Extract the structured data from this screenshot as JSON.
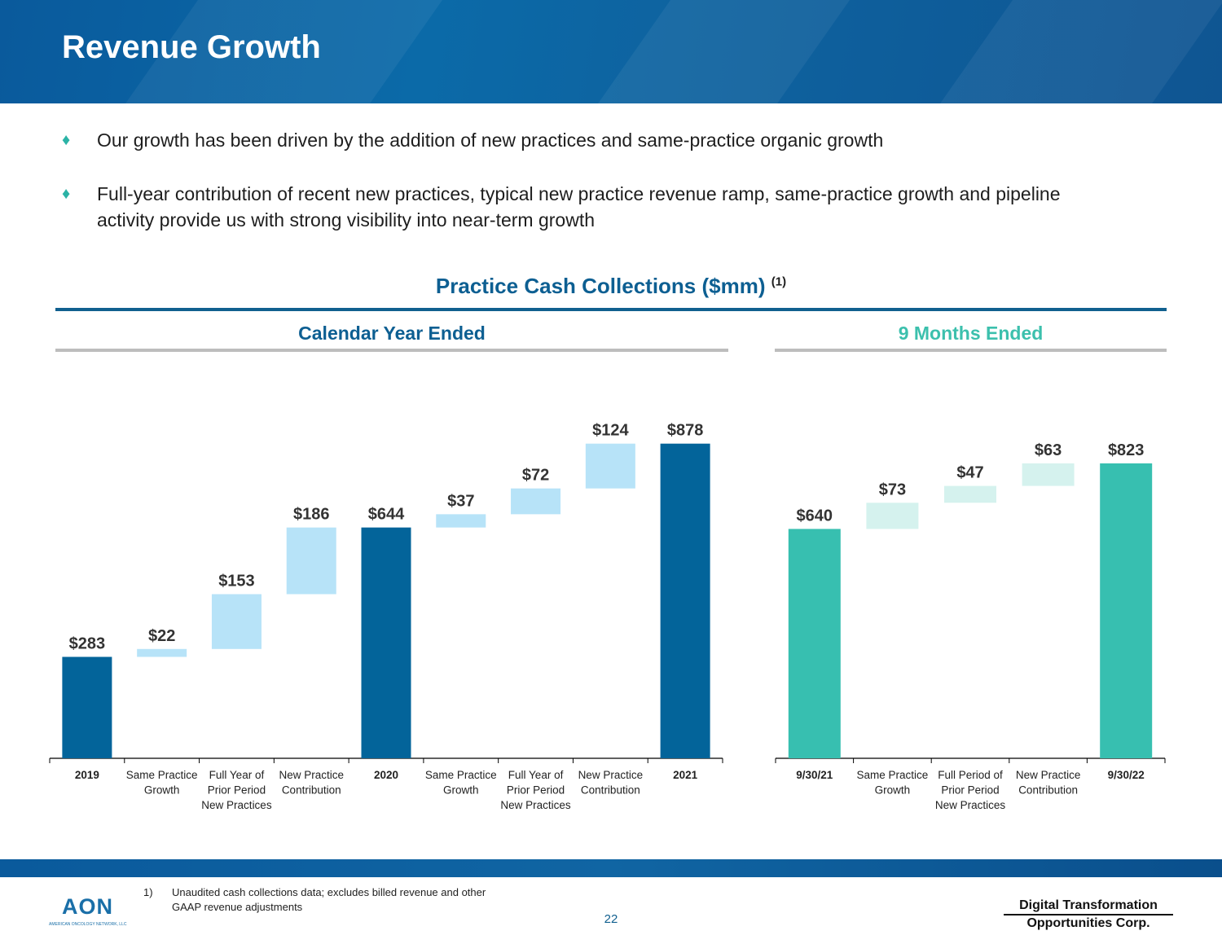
{
  "header": {
    "title": "Revenue Growth"
  },
  "bullets": [
    "Our growth has been driven by the addition of new practices and same-practice organic growth",
    "Full-year contribution of recent new practices, typical new practice revenue ramp, same-practice growth and pipeline activity provide us with strong visibility into near-term growth"
  ],
  "bullet_marker": "♦",
  "chart_title": "Practice Cash Collections ($mm)",
  "chart_title_sup": "(1)",
  "colors": {
    "primary": "#03649a",
    "light_blue": "#b7e3f8",
    "teal": "#37bfb0",
    "light_teal": "#d5f2ee",
    "teal_title": "#3cc0ad",
    "dark_title": "#0d5f92"
  },
  "chart_data": [
    {
      "type": "waterfall",
      "title": "Calendar Year Ended",
      "unit": "$mm",
      "ylim": [
        0,
        900
      ],
      "bars": [
        {
          "label": [
            "2019"
          ],
          "kind": "total",
          "start": 0,
          "end": 283,
          "value_label": "$283"
        },
        {
          "label": [
            "Same Practice",
            "Growth"
          ],
          "kind": "delta",
          "start": 283,
          "end": 305,
          "value_label": "$22"
        },
        {
          "label": [
            "Full Year of",
            "Prior Period",
            "New Practices"
          ],
          "kind": "delta",
          "start": 305,
          "end": 458,
          "value_label": "$153"
        },
        {
          "label": [
            "New Practice",
            "Contribution"
          ],
          "kind": "delta",
          "start": 458,
          "end": 644,
          "value_label": "$186"
        },
        {
          "label": [
            "2020"
          ],
          "kind": "total",
          "start": 0,
          "end": 644,
          "value_label": "$644"
        },
        {
          "label": [
            "Same Practice",
            "Growth"
          ],
          "kind": "delta",
          "start": 644,
          "end": 681,
          "value_label": "$37"
        },
        {
          "label": [
            "Full Year of",
            "Prior Period",
            "New Practices"
          ],
          "kind": "delta",
          "start": 681,
          "end": 753,
          "value_label": "$72"
        },
        {
          "label": [
            "New Practice",
            "Contribution"
          ],
          "kind": "delta",
          "start": 753,
          "end": 878,
          "value_label": "$124"
        },
        {
          "label": [
            "2021"
          ],
          "kind": "total",
          "start": 0,
          "end": 878,
          "value_label": "$878"
        }
      ]
    },
    {
      "type": "waterfall",
      "title": "9 Months Ended",
      "unit": "$mm",
      "ylim": [
        0,
        900
      ],
      "bars": [
        {
          "label": [
            "9/30/21"
          ],
          "kind": "total",
          "start": 0,
          "end": 640,
          "value_label": "$640"
        },
        {
          "label": [
            "Same Practice",
            "Growth"
          ],
          "kind": "delta",
          "start": 640,
          "end": 713,
          "value_label": "$73"
        },
        {
          "label": [
            "Full Period of",
            "Prior Period",
            "New Practices"
          ],
          "kind": "delta",
          "start": 713,
          "end": 760,
          "value_label": "$47"
        },
        {
          "label": [
            "New Practice",
            "Contribution"
          ],
          "kind": "delta",
          "start": 760,
          "end": 823,
          "value_label": "$63"
        },
        {
          "label": [
            "9/30/22"
          ],
          "kind": "total",
          "start": 0,
          "end": 823,
          "value_label": "$823"
        }
      ]
    }
  ],
  "footnote": {
    "number": "1)",
    "text": "Unaudited cash collections data; excludes billed revenue and other GAAP revenue adjustments"
  },
  "page_number": "22",
  "logos": {
    "aon_text": "AON",
    "aon_subtext": "AMERICAN ONCOLOGY NETWORK, LLC",
    "dto_line1": "Digital Transformation",
    "dto_line2": "Opportunities Corp."
  }
}
